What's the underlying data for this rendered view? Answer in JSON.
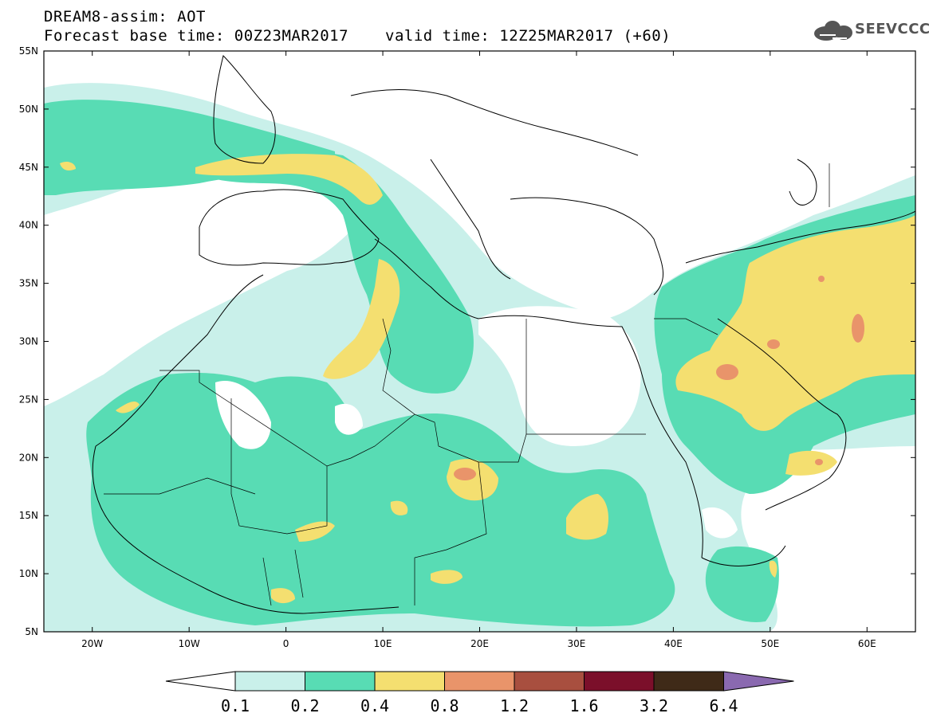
{
  "header": {
    "title_line1": "DREAM8-assim: AOT",
    "title_line2": "Forecast base time: 00Z23MAR2017",
    "valid_time": "valid time: 12Z25MAR2017 (+60)",
    "logo_text": "SEEVCCC"
  },
  "axes": {
    "lat_labels": [
      "55N",
      "50N",
      "45N",
      "40N",
      "35N",
      "30N",
      "25N",
      "20N",
      "15N",
      "10N",
      "5N"
    ],
    "lon_labels": [
      "20W",
      "10W",
      "0",
      "10E",
      "20E",
      "30E",
      "40E",
      "50E",
      "60E"
    ]
  },
  "colorbar": {
    "labels": [
      "0.1",
      "0.2",
      "0.4",
      "0.8",
      "1.2",
      "1.6",
      "3.2",
      "6.4"
    ],
    "colors": [
      "#ffffff",
      "#c9f0ea",
      "#58dcb4",
      "#f4df70",
      "#e9946a",
      "#a84f3f",
      "#7b0f2a",
      "#3f2a18",
      "#8a69b0"
    ]
  },
  "palette": {
    "c1": "#c9f0ea",
    "c2": "#58dcb4",
    "c3": "#f4df70",
    "c4": "#e9946a"
  }
}
